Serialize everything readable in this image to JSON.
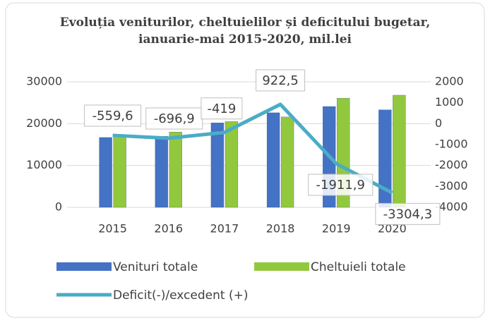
{
  "chart_data": {
    "type": "combo",
    "title": "Evoluția veniturilor, cheltuielilor și deficitului bugetar, ianuarie-mai 2015-2020, mil.lei",
    "categories": [
      "2015",
      "2016",
      "2017",
      "2018",
      "2019",
      "2020"
    ],
    "series": [
      {
        "name": "Venituri totale",
        "type": "bar",
        "color": "#4472c4",
        "values": [
          16700,
          17000,
          20200,
          22600,
          24100,
          23300
        ]
      },
      {
        "name": "Cheltuieli totale",
        "type": "bar",
        "color": "#92c83e",
        "values": [
          17000,
          18000,
          20500,
          21600,
          26100,
          26800
        ]
      },
      {
        "name": "Deficit(-)/excedent (+)",
        "type": "line",
        "axis": "y2",
        "color": "#4bacc6",
        "values": [
          -559.6,
          -696.9,
          -419,
          922.5,
          -1911.9,
          -3304.3
        ],
        "value_labels": [
          "-559,6",
          "-696,9",
          "-419",
          "922,5",
          "-1911,9",
          "-3304,3"
        ]
      }
    ],
    "ylim": [
      0,
      30000
    ],
    "yticks": [
      0,
      10000,
      20000,
      30000
    ],
    "y2lim": [
      -4000,
      2000
    ],
    "y2ticks": [
      -4000,
      -3000,
      -2000,
      -1000,
      0,
      1000,
      2000
    ],
    "grid": true,
    "legend": "bottom"
  }
}
